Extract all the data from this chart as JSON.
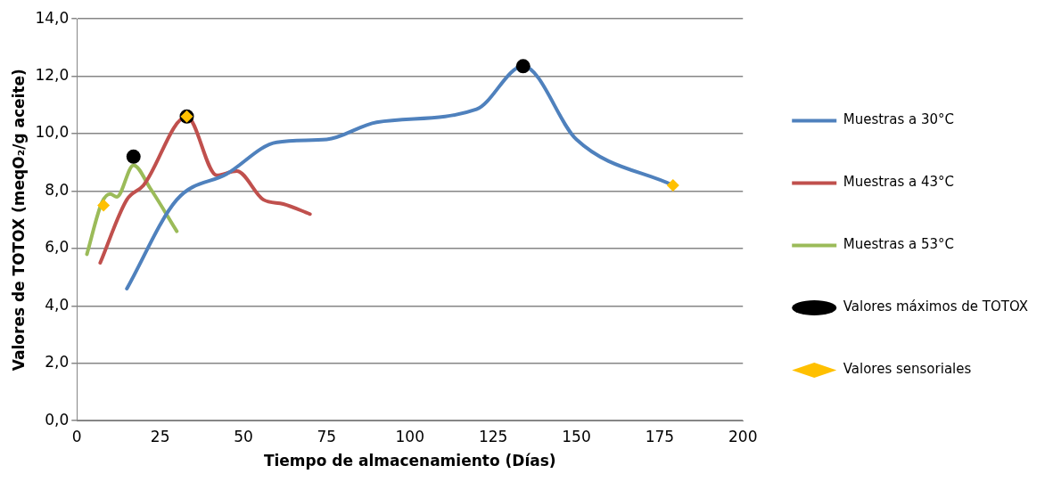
{
  "chart_data": {
    "type": "line",
    "xlabel": "Tiempo de almacenamiento (Días)",
    "ylabel": "Valores de TOTOX (meqO₂/g aceite)",
    "xlim": [
      0,
      200
    ],
    "xticks": [
      0,
      25,
      50,
      75,
      100,
      125,
      150,
      175,
      200
    ],
    "ylim": [
      0,
      14
    ],
    "yticks": [
      {
        "value": 0,
        "label": "0,0"
      },
      {
        "value": 2,
        "label": "2,0"
      },
      {
        "value": 4,
        "label": "4,0"
      },
      {
        "value": 6,
        "label": "6,0"
      },
      {
        "value": 8,
        "label": "8,0"
      },
      {
        "value": 10,
        "label": "10,0"
      },
      {
        "value": 12,
        "label": "12,0"
      },
      {
        "value": 14,
        "label": "14,0"
      }
    ],
    "grid": "y",
    "legend": "right",
    "line_style": "solid",
    "series": [
      {
        "name": "Muestras a 30°C",
        "marker": "none",
        "color": "#4f81bd",
        "x": [
          15,
          30,
          45,
          60,
          75,
          90,
          120,
          134,
          150,
          179
        ],
        "values": [
          4.6,
          7.7,
          8.6,
          9.7,
          9.8,
          10.4,
          10.85,
          12.35,
          9.8,
          8.2
        ]
      },
      {
        "name": "Muestras a 43°C",
        "marker": "none",
        "color": "#c0504d",
        "x": [
          7,
          15,
          20,
          33,
          42,
          48,
          56,
          62,
          70
        ],
        "values": [
          5.5,
          7.7,
          8.2,
          10.6,
          8.55,
          8.7,
          7.7,
          7.55,
          7.2
        ]
      },
      {
        "name": "Muestras a 53°C",
        "marker": "none",
        "color": "#9bbb59",
        "x": [
          3,
          7.5,
          10,
          12,
          17,
          22,
          30
        ],
        "values": [
          5.8,
          7.6,
          7.9,
          7.8,
          8.9,
          8.1,
          6.6
        ]
      },
      {
        "name": "Valores máximos de TOTOX",
        "type": "scatter",
        "marker": "circle",
        "color": "#000000",
        "x": [
          17,
          33,
          134
        ],
        "values": [
          9.2,
          10.6,
          12.35
        ]
      },
      {
        "name": "Valores sensoriales",
        "type": "scatter",
        "marker": "diamond",
        "color": "#ffc000",
        "x": [
          8,
          33,
          179
        ],
        "values": [
          7.5,
          10.6,
          8.2
        ]
      }
    ]
  }
}
